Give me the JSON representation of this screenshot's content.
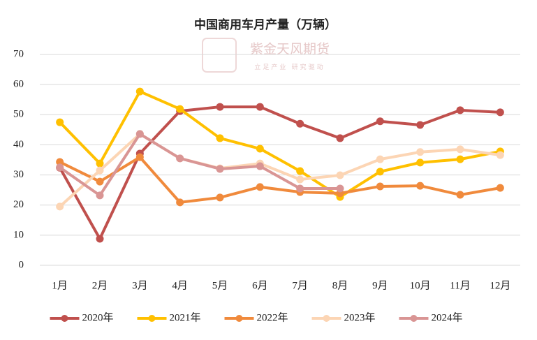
{
  "chart_data": {
    "type": "line",
    "title": "中国商用车月产量（万辆）",
    "annotations": [
      "紫金天风期货",
      "立足产业 研究驱动"
    ],
    "categories": [
      "1月",
      "2月",
      "3月",
      "4月",
      "5月",
      "6月",
      "7月",
      "8月",
      "9月",
      "10月",
      "11月",
      "12月"
    ],
    "series": [
      {
        "name": "2020年",
        "color": "#c0504d",
        "values": [
          32.4,
          8.8,
          37.1,
          51.2,
          52.6,
          52.6,
          47.0,
          42.2,
          47.8,
          46.6,
          51.5,
          50.8
        ]
      },
      {
        "name": "2021年",
        "color": "#ffc000",
        "values": [
          47.5,
          33.8,
          57.7,
          51.9,
          42.2,
          38.7,
          31.3,
          22.7,
          31.1,
          34.1,
          35.2,
          37.8
        ]
      },
      {
        "name": "2022年",
        "color": "#f08a3c",
        "values": [
          34.3,
          27.8,
          35.9,
          20.9,
          22.5,
          26.0,
          24.3,
          23.9,
          26.2,
          26.4,
          23.4,
          25.7
        ]
      },
      {
        "name": "2023年",
        "color": "#fcd5b4",
        "values": [
          19.5,
          31.5,
          43.6,
          35.5,
          32.2,
          33.8,
          28.5,
          29.9,
          35.2,
          37.6,
          38.5,
          36.6
        ]
      },
      {
        "name": "2024年",
        "color": "#d99594",
        "values": [
          32.5,
          23.2,
          43.6,
          35.5,
          32.0,
          32.9,
          25.5,
          25.5,
          null,
          null,
          null,
          null
        ]
      }
    ],
    "ylim": [
      0,
      70
    ],
    "yticks": [
      0,
      10,
      20,
      30,
      40,
      50,
      60,
      70
    ],
    "grid": true,
    "legend": "bottom"
  }
}
